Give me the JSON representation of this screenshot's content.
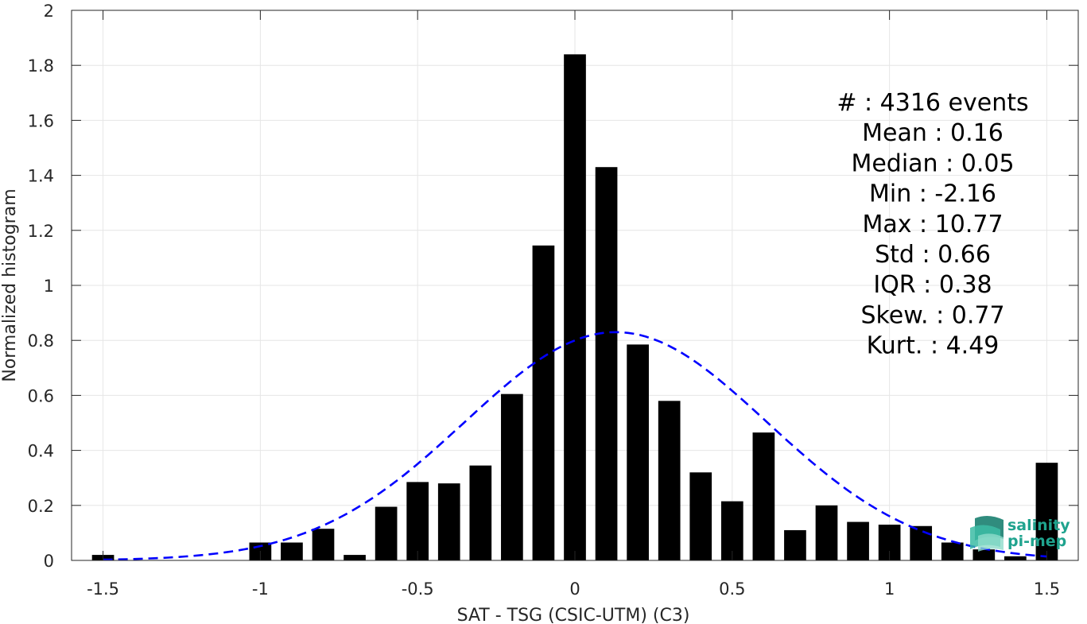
{
  "chart_data": {
    "type": "bar",
    "xlabel": "SAT - TSG (CSIC-UTM) (C3)",
    "ylabel": "Normalized histogram",
    "xlim": [
      -1.6,
      1.6
    ],
    "ylim": [
      0,
      2
    ],
    "xticks": [
      -1.5,
      -1,
      -0.5,
      0,
      0.5,
      1,
      1.5
    ],
    "xtick_labels": [
      "-1.5",
      "-1",
      "-0.5",
      "0",
      "0.5",
      "1",
      "1.5"
    ],
    "yticks": [
      0,
      0.2,
      0.4,
      0.6,
      0.8,
      1,
      1.2,
      1.4,
      1.6,
      1.8,
      2
    ],
    "ytick_labels": [
      "0",
      "0.2",
      "0.4",
      "0.6",
      "0.8",
      "1",
      "1.2",
      "1.4",
      "1.6",
      "1.8",
      "2"
    ],
    "grid": true,
    "bar_width": 0.07,
    "bars": {
      "x": [
        -1.5,
        -1.0,
        -0.9,
        -0.8,
        -0.7,
        -0.6,
        -0.5,
        -0.4,
        -0.3,
        -0.2,
        -0.1,
        0.0,
        0.1,
        0.2,
        0.3,
        0.4,
        0.5,
        0.6,
        0.7,
        0.8,
        0.9,
        1.0,
        1.1,
        1.2,
        1.3,
        1.4,
        1.5
      ],
      "values": [
        0.02,
        0.065,
        0.065,
        0.115,
        0.02,
        0.195,
        0.285,
        0.28,
        0.345,
        0.605,
        1.145,
        1.84,
        1.43,
        0.785,
        0.58,
        0.32,
        0.215,
        0.465,
        0.11,
        0.2,
        0.14,
        0.13,
        0.125,
        0.065,
        0.04,
        0.015,
        0.355
      ],
      "color": "#000000"
    },
    "fit": {
      "style": "dashed",
      "color": "#0000ff",
      "mean": 0.13,
      "std": 0.48,
      "peak": 0.83
    },
    "stats_lines": [
      "#  : 4316 events",
      "Mean : 0.16",
      "Median : 0.05",
      "Min : -2.16",
      "Max : 10.77",
      "Std : 0.66",
      "IQR : 0.38",
      "Skew. : 0.77",
      "Kurt. : 4.49"
    ]
  },
  "logo": {
    "line1": "salinity",
    "line2": "pi-mep",
    "color": "#1fa38e"
  }
}
